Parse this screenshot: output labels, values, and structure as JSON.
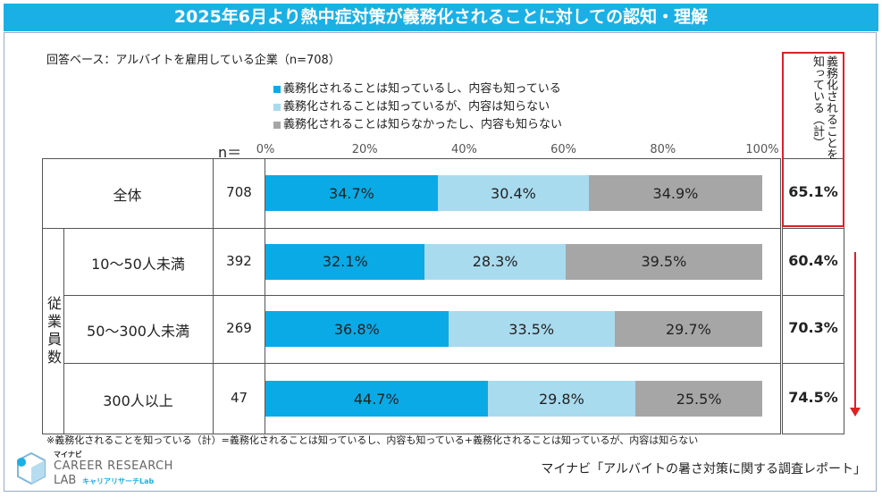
{
  "title": "2025年6月より熱中症対策が義務化されることに対しての認知・理解",
  "base_text": "回答ベース：アルバイトを雇用している企業（n=708）",
  "n_label": "n＝",
  "known_header": "義務化されることを知っている（計）",
  "group_label": "従業員数",
  "footnote": "※義務化されることを知っている（計）=義務化されることは知っているし、内容も知っている+義務化されることは知っているが、内容は知らない",
  "logo": {
    "small": "マイナビ",
    "main": "CAREER RESEARCH",
    "lab": "LAB",
    "sub": "キャリアリサーチLab"
  },
  "source": "マイナビ「アルバイトの暑さ対策に関する調査レポート」",
  "colors": {
    "series1": "#0aaae6",
    "series2": "#a9dbef",
    "series3": "#a6a6a6",
    "title_bg": "#1ab0e6",
    "highlight": "#e02020"
  },
  "chart_data": {
    "type": "bar",
    "orientation": "horizontal-stacked-100",
    "title": "2025年6月より熱中症対策が義務化されることに対しての認知・理解",
    "xlim": [
      0,
      100
    ],
    "x_ticks": [
      "0%",
      "20%",
      "40%",
      "60%",
      "80%",
      "100%"
    ],
    "categories": [
      "全体",
      "10～50人未満",
      "50～300人未満",
      "300人以上"
    ],
    "n": [
      "708",
      "392",
      "269",
      "47"
    ],
    "series": [
      {
        "name": "義務化されることは知っているし、内容も知っている",
        "values": [
          34.7,
          32.1,
          36.8,
          44.7
        ],
        "labels": [
          "34.7%",
          "32.1%",
          "36.8%",
          "44.7%"
        ]
      },
      {
        "name": "義務化されることは知っているが、内容は知らない",
        "values": [
          30.4,
          28.3,
          33.5,
          29.8
        ],
        "labels": [
          "30.4%",
          "28.3%",
          "33.5%",
          "29.8%"
        ]
      },
      {
        "name": "義務化されることは知らなかったし、内容も知らない",
        "values": [
          34.9,
          39.5,
          29.7,
          25.5
        ],
        "labels": [
          "34.9%",
          "39.5%",
          "29.7%",
          "25.5%"
        ]
      }
    ],
    "known_total": [
      "65.1%",
      "60.4%",
      "70.3%",
      "74.5%"
    ],
    "legend_position": "top"
  }
}
